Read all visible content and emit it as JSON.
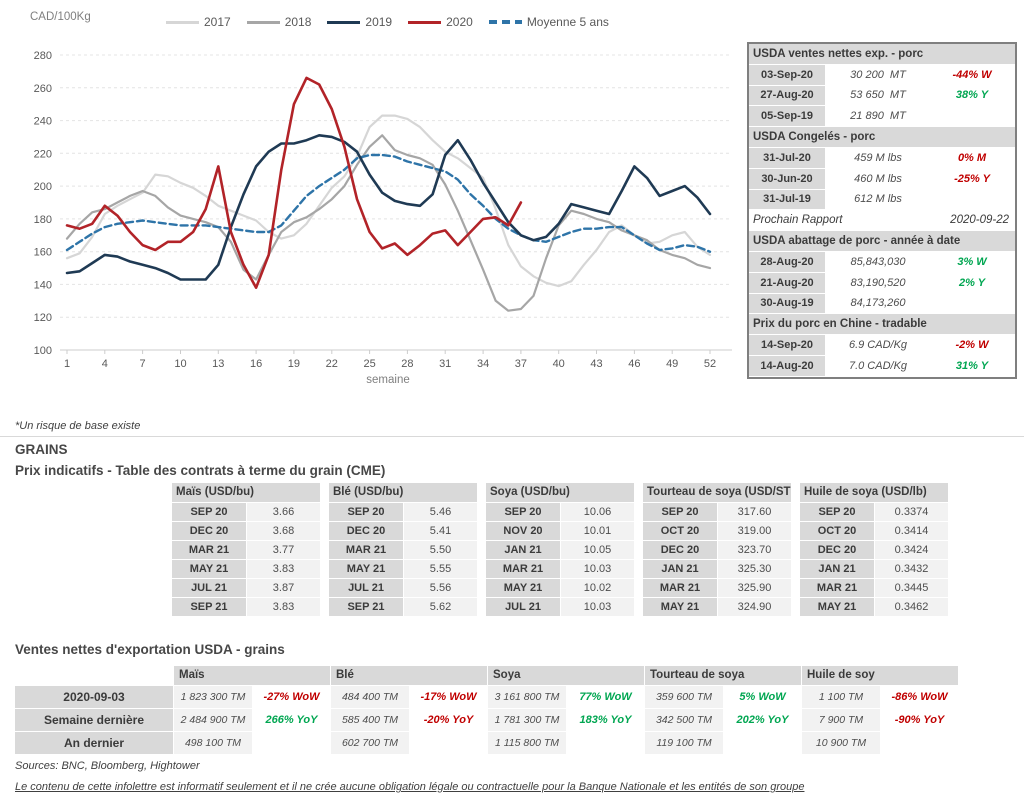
{
  "chart": {
    "y_axis_label": "CAD/100Kg",
    "x_axis_label": "semaine",
    "y_ticks": [
      280,
      260,
      240,
      220,
      200,
      180,
      160,
      140,
      120,
      100
    ],
    "x_ticks": [
      1,
      4,
      7,
      10,
      13,
      16,
      19,
      22,
      25,
      28,
      31,
      34,
      37,
      40,
      43,
      46,
      49,
      52
    ],
    "legend": [
      {
        "label": "2017",
        "color": "#d6d6d6",
        "dash": false
      },
      {
        "label": "2018",
        "color": "#a6a6a6",
        "dash": false
      },
      {
        "label": "2019",
        "color": "#1f3a54",
        "dash": false
      },
      {
        "label": "2020",
        "color": "#b22328",
        "dash": false
      },
      {
        "label": "Moyenne 5 ans",
        "color": "#2e74a8",
        "dash": true
      }
    ]
  },
  "chart_data": {
    "type": "line",
    "title": "",
    "x_label": "semaine",
    "y_label": "CAD/100Kg",
    "x_weeks": 52,
    "ylim": [
      100,
      280
    ],
    "grid": true,
    "legend_position": "top",
    "series": [
      {
        "name": "2017",
        "color": "#d6d6d6",
        "width": 2.2,
        "dash": null,
        "values": [
          156,
          159,
          169,
          183,
          188,
          192,
          196,
          207,
          206,
          202,
          199,
          194,
          188,
          185,
          182,
          179,
          172,
          168,
          170,
          177,
          188,
          199,
          206,
          218,
          236,
          243,
          243,
          241,
          236,
          228,
          221,
          217,
          211,
          205,
          186,
          164,
          151,
          145,
          141,
          139,
          142,
          152,
          161,
          172,
          176,
          170,
          165,
          166,
          170,
          172,
          163,
          158
        ]
      },
      {
        "name": "2018",
        "color": "#a6a6a6",
        "width": 2.2,
        "dash": null,
        "values": [
          168,
          177,
          184,
          186,
          190,
          194,
          197,
          194,
          187,
          182,
          180,
          178,
          175,
          166,
          149,
          143,
          158,
          172,
          178,
          181,
          186,
          192,
          200,
          213,
          224,
          231,
          222,
          219,
          217,
          213,
          201,
          185,
          167,
          149,
          130,
          124,
          125,
          133,
          156,
          176,
          185,
          183,
          180,
          178,
          173,
          170,
          167,
          161,
          158,
          156,
          152,
          150
        ]
      },
      {
        "name": "Moyenne 5 ans",
        "color": "#2e74a8",
        "width": 2.4,
        "dash": "7 4",
        "values": [
          161,
          166,
          171,
          175,
          177,
          178,
          179,
          178,
          177,
          176,
          176,
          176,
          175,
          174,
          173,
          172,
          172,
          176,
          185,
          194,
          200,
          205,
          210,
          217,
          219,
          219,
          218,
          215,
          213,
          211,
          209,
          204,
          195,
          188,
          180,
          174,
          170,
          167,
          166,
          169,
          172,
          174,
          174,
          175,
          175,
          170,
          165,
          161,
          162,
          164,
          163,
          160
        ]
      },
      {
        "name": "2019",
        "color": "#1f3a54",
        "width": 2.6,
        "dash": null,
        "values": [
          147,
          148,
          153,
          158,
          157,
          154,
          152,
          150,
          147,
          143,
          143,
          143,
          152,
          175,
          195,
          212,
          221,
          226,
          226,
          228,
          231,
          230,
          227,
          221,
          207,
          196,
          191,
          189,
          188,
          195,
          219,
          228,
          216,
          202,
          190,
          178,
          170,
          167,
          169,
          177,
          189,
          187,
          185,
          183,
          197,
          212,
          205,
          194,
          197,
          200,
          193,
          183
        ]
      },
      {
        "name": "2020",
        "color": "#b22328",
        "width": 2.6,
        "dash": null,
        "values": [
          176,
          174,
          177,
          188,
          182,
          172,
          164,
          161,
          166,
          166,
          172,
          186,
          212,
          172,
          152,
          138,
          158,
          210,
          250,
          266,
          262,
          247,
          224,
          192,
          172,
          162,
          165,
          158,
          164,
          171,
          173,
          164,
          172,
          180,
          181,
          176,
          190
        ]
      }
    ]
  },
  "porc_panel": {
    "rows": [
      {
        "kind": "section",
        "label": "USDA ventes nettes exp. - porc"
      },
      {
        "kind": "data",
        "date": "03-Sep-20",
        "value": "30 200  MT",
        "change": "-44% W",
        "c": "red"
      },
      {
        "kind": "data",
        "date": "27-Aug-20",
        "value": "53 650  MT",
        "change": "38% Y",
        "c": "green"
      },
      {
        "kind": "data",
        "date": "05-Sep-19",
        "value": "21 890  MT",
        "change": "",
        "c": ""
      },
      {
        "kind": "section",
        "label": "USDA Congelés - porc"
      },
      {
        "kind": "data",
        "date": "31-Jul-20",
        "value": "459 M lbs",
        "change": "0% M",
        "c": "red"
      },
      {
        "kind": "data",
        "date": "30-Jun-20",
        "value": "460 M lbs",
        "change": "-25% Y",
        "c": "red"
      },
      {
        "kind": "data",
        "date": "31-Jul-19",
        "value": "612 M lbs",
        "change": "",
        "c": ""
      },
      {
        "kind": "note",
        "label": "Prochain Rapport",
        "value": "2020-09-22"
      },
      {
        "kind": "section",
        "label": "USDA abattage de porc - année à date"
      },
      {
        "kind": "data",
        "date": "28-Aug-20",
        "value": "85,843,030",
        "change": "3% W",
        "c": "green"
      },
      {
        "kind": "data",
        "date": "21-Aug-20",
        "value": "83,190,520",
        "change": "2% Y",
        "c": "green"
      },
      {
        "kind": "data",
        "date": "30-Aug-19",
        "value": "84,173,260",
        "change": "",
        "c": ""
      },
      {
        "kind": "section",
        "label": "Prix du porc en Chine - tradable"
      },
      {
        "kind": "data",
        "date": "14-Sep-20",
        "value": "6.9 CAD/Kg",
        "change": "-2% W",
        "c": "red"
      },
      {
        "kind": "data",
        "date": "14-Aug-20",
        "value": "7.0 CAD/Kg",
        "change": "31% Y",
        "c": "green"
      }
    ]
  },
  "risk_note": "*Un risque de base existe",
  "grains": {
    "section_title": "GRAINS",
    "futures_title": "Prix indicatifs - Table des contrats à terme du grain (CME)",
    "futures": [
      {
        "header": "Maïs (USD/bu)",
        "rows": [
          {
            "m": "SEP 20",
            "v": "3.66"
          },
          {
            "m": "DEC 20",
            "v": "3.68"
          },
          {
            "m": "MAR 21",
            "v": "3.77"
          },
          {
            "m": "MAY 21",
            "v": "3.83"
          },
          {
            "m": "JUL 21",
            "v": "3.87"
          },
          {
            "m": "SEP 21",
            "v": "3.83"
          }
        ]
      },
      {
        "header": "Blé (USD/bu)",
        "rows": [
          {
            "m": "SEP 20",
            "v": "5.46"
          },
          {
            "m": "DEC 20",
            "v": "5.41"
          },
          {
            "m": "MAR 21",
            "v": "5.50"
          },
          {
            "m": "MAY 21",
            "v": "5.55"
          },
          {
            "m": "JUL 21",
            "v": "5.56"
          },
          {
            "m": "SEP 21",
            "v": "5.62"
          }
        ]
      },
      {
        "header": "Soya (USD/bu)",
        "rows": [
          {
            "m": "SEP 20",
            "v": "10.06"
          },
          {
            "m": "NOV 20",
            "v": "10.01"
          },
          {
            "m": "JAN 21",
            "v": "10.05"
          },
          {
            "m": "MAR 21",
            "v": "10.03"
          },
          {
            "m": "MAY 21",
            "v": "10.02"
          },
          {
            "m": "JUL 21",
            "v": "10.03"
          }
        ]
      },
      {
        "header": "Tourteau de soya (USD/ST",
        "rows": [
          {
            "m": "SEP 20",
            "v": "317.60"
          },
          {
            "m": "OCT 20",
            "v": "319.00"
          },
          {
            "m": "DEC 20",
            "v": "323.70"
          },
          {
            "m": "JAN 21",
            "v": "325.30"
          },
          {
            "m": "MAR 21",
            "v": "325.90"
          },
          {
            "m": "MAY 21",
            "v": "324.90"
          }
        ]
      },
      {
        "header": "Huile de soya (USD/lb)",
        "rows": [
          {
            "m": "SEP 20",
            "v": "0.3374"
          },
          {
            "m": "OCT 20",
            "v": "0.3414"
          },
          {
            "m": "DEC 20",
            "v": "0.3424"
          },
          {
            "m": "JAN 21",
            "v": "0.3432"
          },
          {
            "m": "MAR 21",
            "v": "0.3445"
          },
          {
            "m": "MAY 21",
            "v": "0.3462"
          }
        ]
      }
    ],
    "exports_title": "Ventes nettes d'exportation USDA - grains",
    "exports": {
      "columns": [
        "Maïs",
        "Blé",
        "Soya",
        "Tourteau de soya",
        "Huile de soy"
      ],
      "rows": [
        {
          "label": "2020-09-03",
          "cells": [
            {
              "v": "1 823 300 TM",
              "p": "-27% WoW",
              "c": "red"
            },
            {
              "v": "484 400 TM",
              "p": "-17% WoW",
              "c": "red"
            },
            {
              "v": "3 161 800 TM",
              "p": "77% WoW",
              "c": "green"
            },
            {
              "v": "359 600 TM",
              "p": "5% WoW",
              "c": "green"
            },
            {
              "v": "1 100 TM",
              "p": "-86% WoW",
              "c": "red"
            }
          ]
        },
        {
          "label": "Semaine dernière",
          "cells": [
            {
              "v": "2 484 900 TM",
              "p": "266% YoY",
              "c": "green"
            },
            {
              "v": "585 400 TM",
              "p": "-20% YoY",
              "c": "red"
            },
            {
              "v": "1 781 300 TM",
              "p": "183% YoY",
              "c": "green"
            },
            {
              "v": "342 500 TM",
              "p": "202% YoY",
              "c": "green"
            },
            {
              "v": "7 900 TM",
              "p": "-90% YoY",
              "c": "red"
            }
          ]
        },
        {
          "label": "An dernier",
          "cells": [
            {
              "v": "498 100 TM",
              "p": "",
              "c": ""
            },
            {
              "v": "602 700 TM",
              "p": "",
              "c": ""
            },
            {
              "v": "1 115 800 TM",
              "p": "",
              "c": ""
            },
            {
              "v": "119 100 TM",
              "p": "",
              "c": ""
            },
            {
              "v": "10 900 TM",
              "p": "",
              "c": ""
            }
          ]
        }
      ]
    }
  },
  "footer": {
    "sources": "Sources: BNC, Bloomberg, Hightower",
    "disclaimer": "Le contenu de cette infolettre est informatif seulement et il ne crée aucune obligation légale ou contractuelle pour la Banque Nationale et les entités de son groupe"
  },
  "colors": {
    "negative": "#c00000",
    "positive": "#00a651",
    "header_bg": "#d9d9d9",
    "cell_bg": "#f2f2f2",
    "panel_border": "#7f7f7f"
  }
}
